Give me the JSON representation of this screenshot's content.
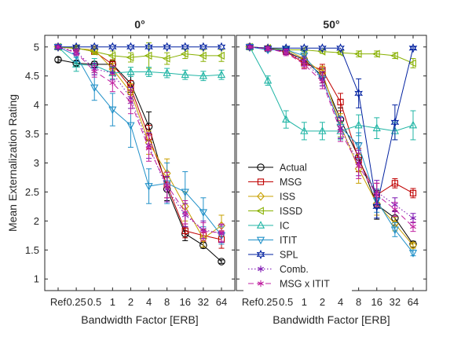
{
  "chart_data": [
    {
      "type": "line",
      "title": "0°",
      "xlabel": "Bandwidth Factor [ERB]",
      "ylabel": "Mean Externalization Rating",
      "x_tick_labels": [
        "Ref",
        "0.25",
        "0.5",
        "1",
        "2",
        "4",
        "8",
        "16",
        "32",
        "64"
      ],
      "y_ticks": [
        1,
        1.5,
        2,
        2.5,
        3,
        3.5,
        4,
        4.5,
        5
      ],
      "ylim": [
        0.8,
        5.2
      ],
      "grid": false,
      "series": [
        {
          "name": "Actual",
          "color": "#000000",
          "marker": "circle",
          "dash": "solid",
          "x": [
            "Ref",
            "0.25",
            "0.5",
            "1",
            "2",
            "4",
            "8",
            "16",
            "32",
            "64"
          ],
          "y": [
            4.78,
            4.72,
            4.7,
            4.7,
            4.37,
            3.63,
            2.55,
            1.78,
            1.58,
            1.3
          ],
          "err": [
            0.04,
            0.04,
            0.05,
            0.06,
            0.15,
            0.25,
            0.2,
            0.12,
            0.05,
            0.03
          ]
        },
        {
          "name": "MSG",
          "color": "#C00000",
          "marker": "square",
          "dash": "solid",
          "x": [
            "Ref",
            "0.25",
            "0.5",
            "1",
            "2",
            "4",
            "8",
            "16",
            "32",
            "64"
          ],
          "y": [
            5.0,
            4.98,
            4.92,
            4.7,
            4.3,
            3.45,
            2.62,
            1.83,
            1.75,
            1.68
          ],
          "err": [
            0.02,
            0.03,
            0.05,
            0.08,
            0.12,
            0.2,
            0.22,
            0.12,
            0.1,
            0.15
          ]
        },
        {
          "name": "ISS",
          "color": "#C8A000",
          "marker": "diamond",
          "dash": "solid",
          "x": [
            "Ref",
            "0.25",
            "0.5",
            "1",
            "2",
            "4",
            "8",
            "16",
            "32",
            "64"
          ],
          "y": [
            5.0,
            4.97,
            4.95,
            4.62,
            4.22,
            3.35,
            2.82,
            2.25,
            1.7,
            1.92
          ],
          "err": [
            0.02,
            0.03,
            0.06,
            0.1,
            0.15,
            0.2,
            0.25,
            0.25,
            0.15,
            0.18
          ]
        },
        {
          "name": "ISSD",
          "color": "#88B000",
          "marker": "triangle-left",
          "dash": "solid",
          "x": [
            "Ref",
            "0.25",
            "0.5",
            "1",
            "2",
            "4",
            "8",
            "16",
            "32",
            "64"
          ],
          "y": [
            5.0,
            4.98,
            4.92,
            4.85,
            4.82,
            4.85,
            4.8,
            4.88,
            4.85,
            4.85
          ],
          "err": [
            0.02,
            0.03,
            0.05,
            0.08,
            0.08,
            0.22,
            0.1,
            0.08,
            0.1,
            0.1
          ]
        },
        {
          "name": "IC",
          "color": "#20B5A5",
          "marker": "triangle-up",
          "dash": "solid",
          "x": [
            "Ref",
            "0.25",
            "0.5",
            "1",
            "2",
            "4",
            "8",
            "16",
            "32",
            "64"
          ],
          "y": [
            5.0,
            4.7,
            4.68,
            4.55,
            4.57,
            4.57,
            4.55,
            4.52,
            4.5,
            4.52
          ],
          "err": [
            0.02,
            0.12,
            0.12,
            0.1,
            0.08,
            0.08,
            0.08,
            0.08,
            0.08,
            0.08
          ]
        },
        {
          "name": "ITIT",
          "color": "#2090C8",
          "marker": "triangle-down",
          "dash": "solid",
          "x": [
            "Ref",
            "0.25",
            "0.5",
            "1",
            "2",
            "4",
            "8",
            "16",
            "32",
            "64"
          ],
          "y": [
            5.0,
            4.85,
            4.3,
            3.92,
            3.65,
            2.6,
            2.65,
            2.5,
            2.15,
            1.75
          ],
          "err": [
            0.02,
            0.1,
            0.22,
            0.28,
            0.38,
            0.3,
            0.35,
            0.35,
            0.25,
            0.15
          ]
        },
        {
          "name": "SPL",
          "color": "#0020A0",
          "marker": "hexagram",
          "dash": "solid",
          "x": [
            "Ref",
            "0.25",
            "0.5",
            "1",
            "2",
            "4",
            "8",
            "16",
            "32",
            "64"
          ],
          "y": [
            5.0,
            5.0,
            5.0,
            5.0,
            5.0,
            5.0,
            5.0,
            5.0,
            5.0,
            5.0
          ],
          "err": [
            0.01,
            0.01,
            0.01,
            0.01,
            0.01,
            0.01,
            0.01,
            0.01,
            0.01,
            0.01
          ]
        },
        {
          "name": "Comb.",
          "color": "#7A10B0",
          "marker": "asterisk",
          "dash": "dotted",
          "x": [
            "Ref",
            "0.25",
            "0.5",
            "1",
            "2",
            "4",
            "8",
            "16",
            "32",
            "64"
          ],
          "y": [
            5.0,
            4.92,
            4.62,
            4.55,
            4.12,
            3.3,
            2.55,
            2.1,
            1.85,
            1.78
          ],
          "err": [
            0.02,
            0.05,
            0.1,
            0.12,
            0.18,
            0.22,
            0.22,
            0.2,
            0.15,
            0.15
          ]
        },
        {
          "name": "MSG x ITIT",
          "color": "#C020A0",
          "marker": "asterisk",
          "dash": "dashed",
          "x": [
            "Ref",
            "0.25",
            "0.5",
            "1",
            "2",
            "4",
            "8",
            "16",
            "32",
            "64"
          ],
          "y": [
            5.0,
            4.9,
            4.58,
            4.38,
            4.05,
            3.25,
            2.62,
            2.15,
            1.82,
            1.8
          ],
          "err": [
            0.02,
            0.05,
            0.1,
            0.15,
            0.2,
            0.22,
            0.22,
            0.2,
            0.15,
            0.15
          ]
        }
      ]
    },
    {
      "type": "line",
      "title": "50°",
      "xlabel": "Bandwidth Factor [ERB]",
      "ylabel": "",
      "x_tick_labels": [
        "Ref",
        "0.25",
        "0.5",
        "1",
        "2",
        "4",
        "8",
        "16",
        "32",
        "64"
      ],
      "y_ticks": [
        1,
        1.5,
        2,
        2.5,
        3,
        3.5,
        4,
        4.5,
        5
      ],
      "ylim": [
        0.8,
        5.2
      ],
      "grid": false,
      "legend_position": "lower-left",
      "series": [
        {
          "name": "Actual",
          "color": "#000000",
          "marker": "circle",
          "dash": "solid",
          "x": [
            "Ref",
            "0.25",
            "0.5",
            "1",
            "2",
            "4",
            "8",
            "16",
            "32",
            "64"
          ],
          "y": [
            5.0,
            4.97,
            4.92,
            4.78,
            4.5,
            3.75,
            3.1,
            2.28,
            2.05,
            1.6
          ],
          "err": [
            0.02,
            0.03,
            0.05,
            0.08,
            0.12,
            0.2,
            0.25,
            0.25,
            0.12,
            0.05
          ]
        },
        {
          "name": "MSG",
          "color": "#C00000",
          "marker": "square",
          "dash": "solid",
          "x": [
            "Ref",
            "0.25",
            "0.5",
            "1",
            "2",
            "4",
            "8",
            "16",
            "32",
            "64"
          ],
          "y": [
            5.0,
            4.97,
            4.92,
            4.72,
            4.6,
            4.05,
            3.05,
            2.45,
            2.65,
            2.48
          ],
          "err": [
            0.02,
            0.03,
            0.05,
            0.08,
            0.1,
            0.15,
            0.2,
            0.2,
            0.08,
            0.08
          ]
        },
        {
          "name": "ISS",
          "color": "#C8A000",
          "marker": "diamond",
          "dash": "solid",
          "x": [
            "Ref",
            "0.25",
            "0.5",
            "1",
            "2",
            "4",
            "8",
            "16",
            "32",
            "64"
          ],
          "y": [
            5.0,
            4.98,
            4.95,
            4.8,
            4.55,
            3.65,
            2.9,
            2.3,
            1.95,
            1.58
          ],
          "err": [
            0.02,
            0.03,
            0.05,
            0.08,
            0.12,
            0.2,
            0.25,
            0.2,
            0.12,
            0.05
          ]
        },
        {
          "name": "ISSD",
          "color": "#88B000",
          "marker": "triangle-left",
          "dash": "solid",
          "x": [
            "Ref",
            "0.25",
            "0.5",
            "1",
            "2",
            "4",
            "8",
            "16",
            "32",
            "64"
          ],
          "y": [
            5.0,
            4.98,
            4.95,
            4.95,
            4.92,
            4.9,
            4.88,
            4.88,
            4.85,
            4.72
          ],
          "err": [
            0.02,
            0.02,
            0.03,
            0.03,
            0.03,
            0.03,
            0.05,
            0.05,
            0.05,
            0.08
          ]
        },
        {
          "name": "IC",
          "color": "#20B5A5",
          "marker": "triangle-up",
          "dash": "solid",
          "x": [
            "Ref",
            "0.25",
            "0.5",
            "1",
            "2",
            "4",
            "8",
            "16",
            "32",
            "64"
          ],
          "y": [
            5.0,
            4.42,
            3.75,
            3.55,
            3.55,
            3.55,
            3.65,
            3.6,
            3.55,
            3.65
          ],
          "err": [
            0.02,
            0.08,
            0.15,
            0.15,
            0.15,
            0.15,
            0.18,
            0.18,
            0.15,
            0.25
          ]
        },
        {
          "name": "ITIT",
          "color": "#2090C8",
          "marker": "triangle-down",
          "dash": "solid",
          "x": [
            "Ref",
            "0.25",
            "0.5",
            "1",
            "2",
            "4",
            "8",
            "16",
            "32",
            "64"
          ],
          "y": [
            5.0,
            4.95,
            4.95,
            4.85,
            4.45,
            3.62,
            3.3,
            2.35,
            1.85,
            1.45
          ],
          "err": [
            0.02,
            0.03,
            0.05,
            0.08,
            0.12,
            0.18,
            0.22,
            0.2,
            0.12,
            0.05
          ]
        },
        {
          "name": "SPL",
          "color": "#0020A0",
          "marker": "hexagram",
          "dash": "solid",
          "x": [
            "Ref",
            "0.25",
            "0.5",
            "1",
            "2",
            "4",
            "8",
            "16",
            "32",
            "64"
          ],
          "y": [
            5.0,
            4.98,
            4.98,
            4.98,
            4.98,
            4.98,
            4.2,
            2.25,
            3.7,
            4.98
          ],
          "err": [
            0.01,
            0.01,
            0.01,
            0.01,
            0.01,
            0.01,
            0.25,
            0.2,
            0.3,
            0.02
          ]
        },
        {
          "name": "Comb.",
          "color": "#7A10B0",
          "marker": "asterisk",
          "dash": "dotted",
          "x": [
            "Ref",
            "0.25",
            "0.5",
            "1",
            "2",
            "4",
            "8",
            "16",
            "32",
            "64"
          ],
          "y": [
            5.0,
            4.97,
            4.92,
            4.75,
            4.45,
            3.6,
            3.0,
            2.5,
            2.28,
            2.05
          ],
          "err": [
            0.02,
            0.03,
            0.05,
            0.08,
            0.12,
            0.18,
            0.22,
            0.2,
            0.12,
            0.08
          ]
        },
        {
          "name": "MSG x ITIT",
          "color": "#C020A0",
          "marker": "asterisk",
          "dash": "dashed",
          "x": [
            "Ref",
            "0.25",
            "0.5",
            "1",
            "2",
            "4",
            "8",
            "16",
            "32",
            "64"
          ],
          "y": [
            5.0,
            4.97,
            4.9,
            4.7,
            4.4,
            3.55,
            2.95,
            2.45,
            2.2,
            1.9
          ],
          "err": [
            0.02,
            0.03,
            0.05,
            0.08,
            0.12,
            0.18,
            0.22,
            0.2,
            0.12,
            0.08
          ]
        }
      ]
    }
  ]
}
